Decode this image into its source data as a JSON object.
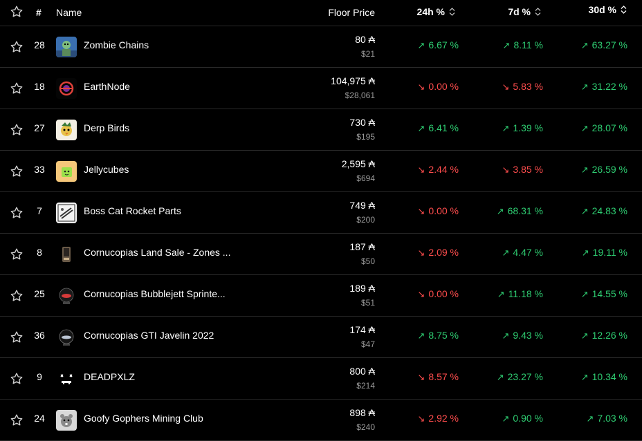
{
  "header": {
    "rank": "#",
    "name": "Name",
    "floor": "Floor Price",
    "h24": "24h %",
    "d7": "7d %",
    "d30": "30d %"
  },
  "colors": {
    "up": "#2ecc71",
    "down": "#ff4d4d",
    "muted": "#9a9a9a",
    "divider": "#2a2a2a"
  },
  "rows": [
    {
      "rank": "28",
      "name": "Zombie Chains",
      "icon": "zombie-chains-thumbnail",
      "ada": "80 ₳",
      "usd": "$21",
      "h24": "6.67 %",
      "h24_dir": "up",
      "d7": "8.11 %",
      "d7_dir": "up",
      "d30": "63.27 %",
      "d30_dir": "up"
    },
    {
      "rank": "18",
      "name": "EarthNode",
      "icon": "earthnode-thumbnail",
      "ada": "104,975 ₳",
      "usd": "$28,061",
      "h24": "0.00 %",
      "h24_dir": "down",
      "d7": "5.83 %",
      "d7_dir": "down",
      "d30": "31.22 %",
      "d30_dir": "up"
    },
    {
      "rank": "27",
      "name": "Derp Birds",
      "icon": "derp-birds-thumbnail",
      "ada": "730 ₳",
      "usd": "$195",
      "h24": "6.41 %",
      "h24_dir": "up",
      "d7": "1.39 %",
      "d7_dir": "up",
      "d30": "28.07 %",
      "d30_dir": "up"
    },
    {
      "rank": "33",
      "name": "Jellycubes",
      "icon": "jellycubes-thumbnail",
      "ada": "2,595 ₳",
      "usd": "$694",
      "h24": "2.44 %",
      "h24_dir": "down",
      "d7": "3.85 %",
      "d7_dir": "down",
      "d30": "26.59 %",
      "d30_dir": "up"
    },
    {
      "rank": "7",
      "name": "Boss Cat Rocket Parts",
      "icon": "boss-cat-rocket-parts-thumbnail",
      "ada": "749 ₳",
      "usd": "$200",
      "h24": "0.00 %",
      "h24_dir": "down",
      "d7": "68.31 %",
      "d7_dir": "up",
      "d30": "24.83 %",
      "d30_dir": "up"
    },
    {
      "rank": "8",
      "name": "Cornucopias Land Sale - Zones ...",
      "icon": "cornucopias-land-thumbnail",
      "ada": "187 ₳",
      "usd": "$50",
      "h24": "2.09 %",
      "h24_dir": "down",
      "d7": "4.47 %",
      "d7_dir": "up",
      "d30": "19.11 %",
      "d30_dir": "up"
    },
    {
      "rank": "25",
      "name": "Cornucopias Bubblejett Sprinte...",
      "icon": "cornucopias-bubblejett-thumbnail",
      "ada": "189 ₳",
      "usd": "$51",
      "h24": "0.00 %",
      "h24_dir": "down",
      "d7": "11.18 %",
      "d7_dir": "up",
      "d30": "14.55 %",
      "d30_dir": "up"
    },
    {
      "rank": "36",
      "name": "Cornucopias GTI Javelin 2022",
      "icon": "cornucopias-gti-javelin-thumbnail",
      "ada": "174 ₳",
      "usd": "$47",
      "h24": "8.75 %",
      "h24_dir": "up",
      "d7": "9.43 %",
      "d7_dir": "up",
      "d30": "12.26 %",
      "d30_dir": "up"
    },
    {
      "rank": "9",
      "name": "DEADPXLZ",
      "icon": "deadpxlz-thumbnail",
      "ada": "800 ₳",
      "usd": "$214",
      "h24": "8.57 %",
      "h24_dir": "down",
      "d7": "23.27 %",
      "d7_dir": "up",
      "d30": "10.34 %",
      "d30_dir": "up"
    },
    {
      "rank": "24",
      "name": "Goofy Gophers Mining Club",
      "icon": "goofy-gophers-thumbnail",
      "ada": "898 ₳",
      "usd": "$240",
      "h24": "2.92 %",
      "h24_dir": "down",
      "d7": "0.90 %",
      "d7_dir": "up",
      "d30": "7.03 %",
      "d30_dir": "up"
    }
  ]
}
